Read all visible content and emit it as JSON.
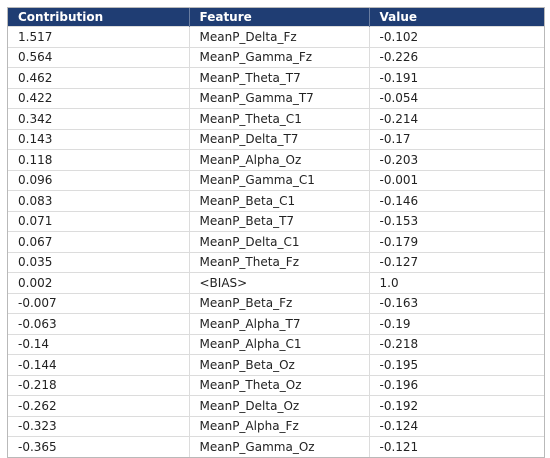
{
  "table": {
    "header": [
      "Contribution",
      "Feature",
      "Value"
    ],
    "rows": [
      [
        "1.517",
        "MeanP_Delta_Fz",
        "-0.102"
      ],
      [
        "0.564",
        "MeanP_Gamma_Fz",
        "-0.226"
      ],
      [
        "0.462",
        "MeanP_Theta_T7",
        "-0.191"
      ],
      [
        "0.422",
        "MeanP_Gamma_T7",
        "-0.054"
      ],
      [
        "0.342",
        "MeanP_Theta_C1",
        "-0.214"
      ],
      [
        "0.143",
        "MeanP_Delta_T7",
        "-0.17"
      ],
      [
        "0.118",
        "MeanP_Alpha_Oz",
        "-0.203"
      ],
      [
        "0.096",
        "MeanP_Gamma_C1",
        "-0.001"
      ],
      [
        "0.083",
        "MeanP_Beta_C1",
        "-0.146"
      ],
      [
        "0.071",
        "MeanP_Beta_T7",
        "-0.153"
      ],
      [
        "0.067",
        "MeanP_Delta_C1",
        "-0.179"
      ],
      [
        "0.035",
        "MeanP_Theta_Fz",
        "-0.127"
      ],
      [
        "0.002",
        "<BIAS>",
        "1.0"
      ],
      [
        "-0.007",
        "MeanP_Beta_Fz",
        "-0.163"
      ],
      [
        "-0.063",
        "MeanP_Alpha_T7",
        "-0.19"
      ],
      [
        "-0.14",
        "MeanP_Alpha_C1",
        "-0.218"
      ],
      [
        "-0.144",
        "MeanP_Beta_Oz",
        "-0.195"
      ],
      [
        "-0.218",
        "MeanP_Theta_Oz",
        "-0.196"
      ],
      [
        "-0.262",
        "MeanP_Delta_Oz",
        "-0.192"
      ],
      [
        "-0.323",
        "MeanP_Alpha_Fz",
        "-0.124"
      ],
      [
        "-0.365",
        "MeanP_Gamma_Oz",
        "-0.121"
      ]
    ]
  }
}
